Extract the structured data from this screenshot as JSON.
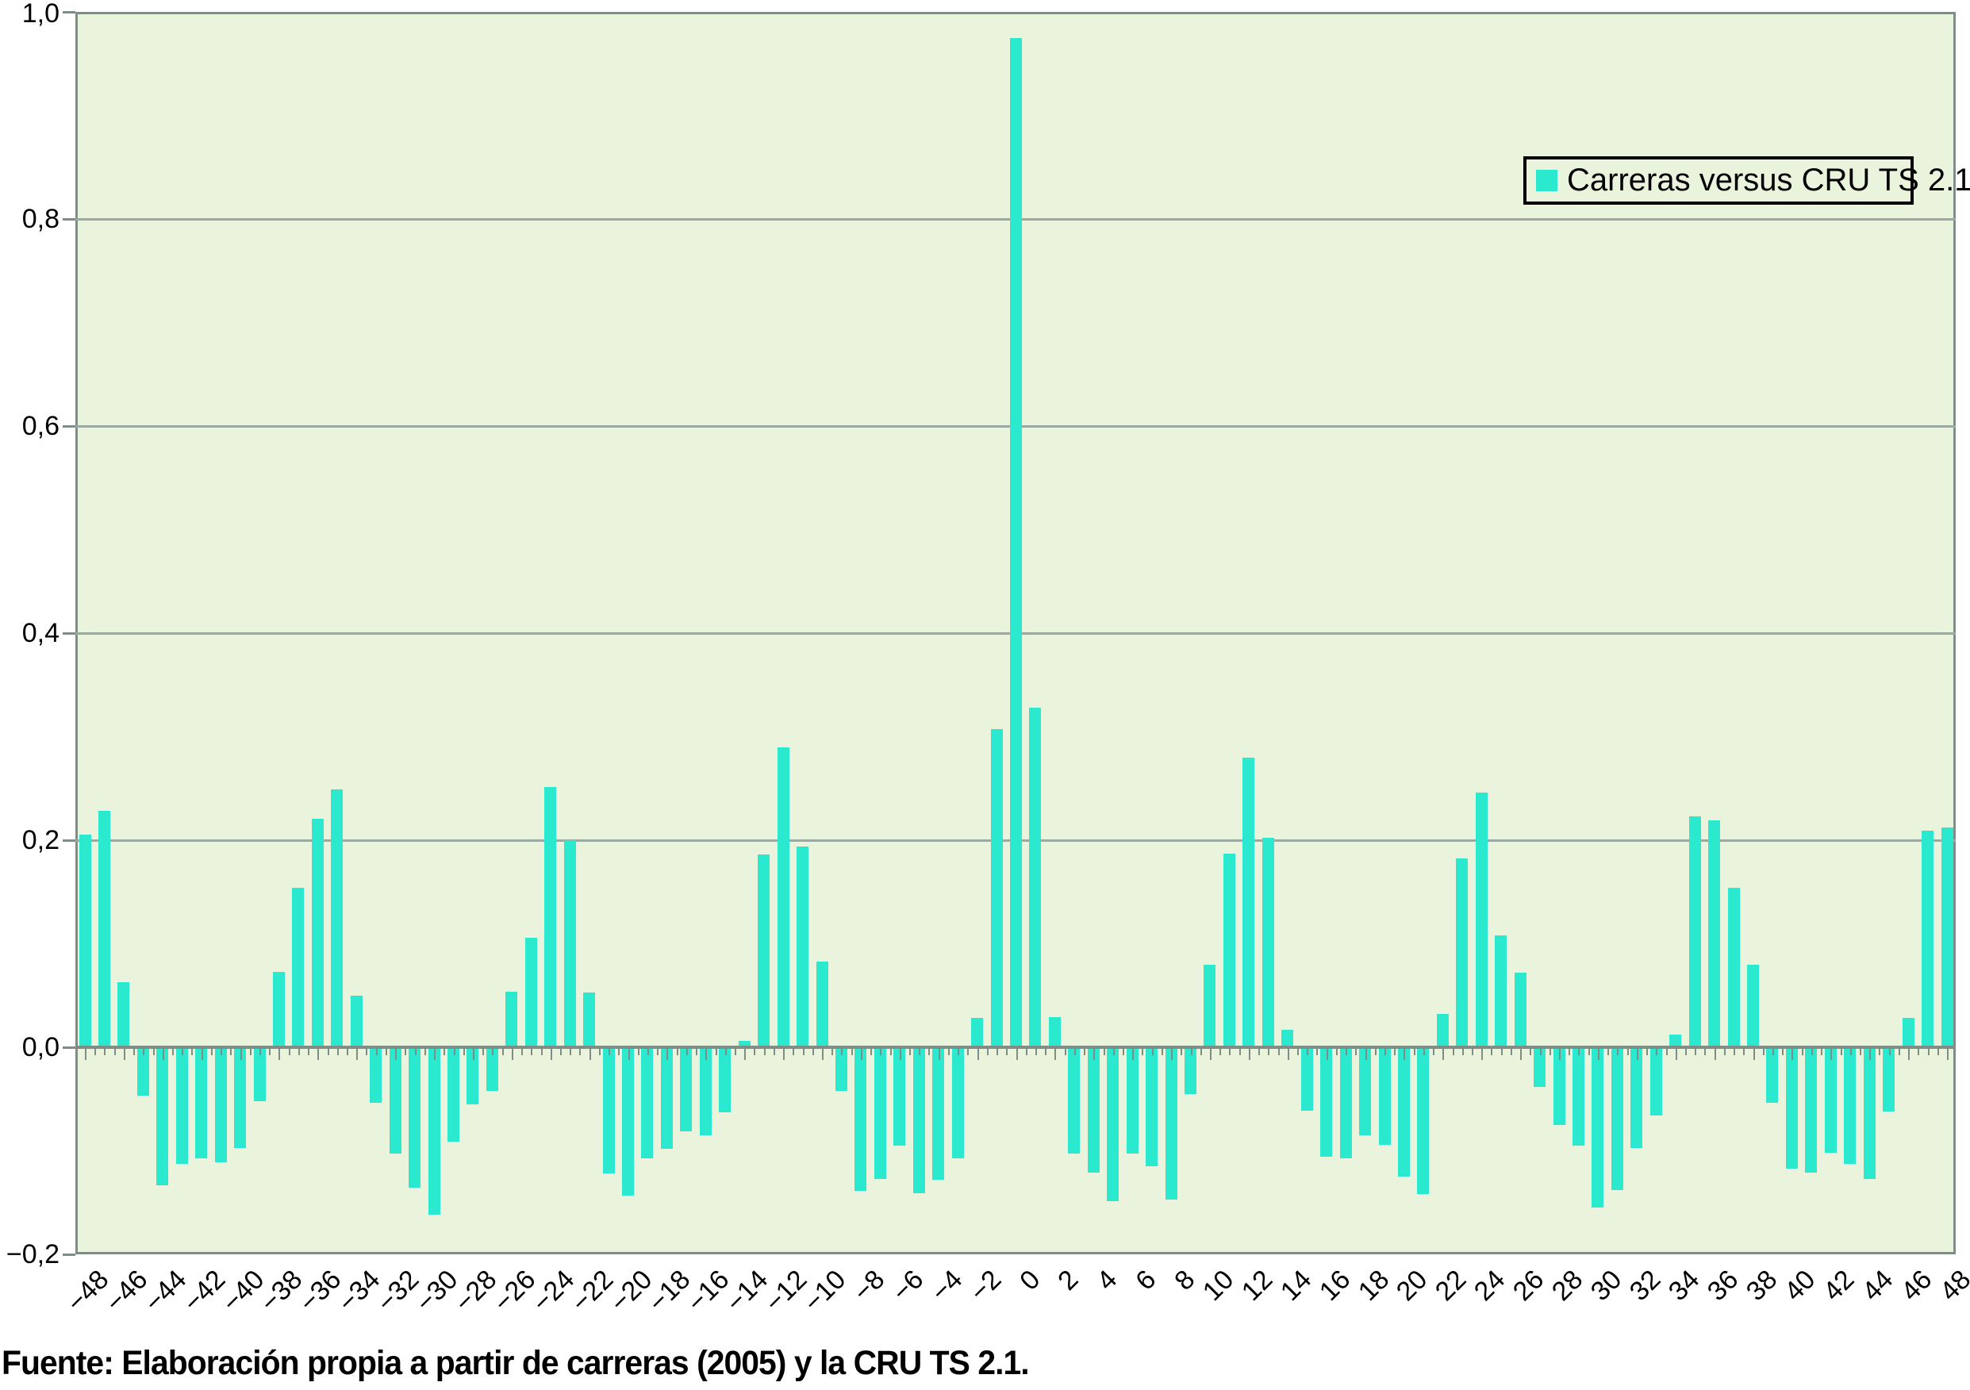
{
  "chart_data": {
    "type": "bar",
    "title": "",
    "xlabel": "",
    "ylabel": "",
    "legend_label": "Carreras versus CRU TS 2.1",
    "legend_position": "top-right",
    "grid": true,
    "ylim": [
      -0.2,
      1.0
    ],
    "ytick_values": [
      1.0,
      0.8,
      0.6,
      0.4,
      0.2,
      0.0,
      -0.2
    ],
    "ytick_labels": [
      "1,0",
      "0,8",
      "0,6",
      "0,4",
      "0,2",
      "0,0",
      "−0,2"
    ],
    "xtick_label_step": 2,
    "xtick_labels": [
      "−48",
      "−46",
      "−44",
      "−42",
      "−40",
      "−38",
      "−36",
      "−34",
      "−32",
      "−30",
      "−28",
      "−26",
      "−24",
      "−22",
      "−20",
      "−18",
      "−16",
      "−14",
      "−12",
      "−10",
      "−8",
      "−6",
      "−4",
      "−2",
      "0",
      "2",
      "4",
      "6",
      "8",
      "10",
      "12",
      "14",
      "16",
      "18",
      "20",
      "22",
      "24",
      "26",
      "28",
      "30",
      "32",
      "34",
      "36",
      "38",
      "40",
      "42",
      "44",
      "46",
      "48"
    ],
    "x": [
      -48,
      -47,
      -46,
      -45,
      -44,
      -43,
      -42,
      -41,
      -40,
      -39,
      -38,
      -37,
      -36,
      -35,
      -34,
      -33,
      -32,
      -31,
      -30,
      -29,
      -28,
      -27,
      -26,
      -25,
      -24,
      -23,
      -22,
      -21,
      -20,
      -19,
      -18,
      -17,
      -16,
      -15,
      -14,
      -13,
      -12,
      -11,
      -10,
      -9,
      -8,
      -7,
      -6,
      -5,
      -4,
      -3,
      -2,
      -1,
      0,
      1,
      2,
      3,
      4,
      5,
      6,
      7,
      8,
      9,
      10,
      11,
      12,
      13,
      14,
      15,
      16,
      17,
      18,
      19,
      20,
      21,
      22,
      23,
      24,
      25,
      26,
      27,
      28,
      29,
      30,
      31,
      32,
      33,
      34,
      35,
      36,
      37,
      38,
      39,
      40,
      41,
      42,
      43,
      44,
      45,
      46,
      47,
      48
    ],
    "values": [
      0.205,
      0.228,
      0.063,
      -0.047,
      -0.133,
      -0.113,
      -0.107,
      -0.111,
      -0.097,
      -0.052,
      0.073,
      0.154,
      0.221,
      0.249,
      0.05,
      -0.054,
      -0.103,
      -0.136,
      -0.162,
      -0.091,
      -0.055,
      -0.042,
      0.054,
      0.106,
      0.251,
      0.2,
      0.053,
      -0.122,
      -0.143,
      -0.107,
      -0.098,
      -0.081,
      -0.085,
      -0.063,
      0.006,
      0.186,
      0.29,
      0.194,
      0.083,
      -0.042,
      -0.139,
      -0.127,
      -0.095,
      -0.141,
      -0.128,
      -0.107,
      0.028,
      0.307,
      0.975,
      0.328,
      0.029,
      -0.103,
      -0.121,
      -0.149,
      -0.103,
      -0.115,
      -0.147,
      -0.045,
      0.08,
      0.187,
      0.28,
      0.202,
      0.017,
      -0.061,
      -0.106,
      -0.107,
      -0.085,
      -0.094,
      -0.125,
      -0.142,
      0.032,
      0.182,
      0.246,
      0.108,
      0.072,
      -0.038,
      -0.075,
      -0.095,
      -0.155,
      -0.138,
      -0.097,
      -0.066,
      0.012,
      0.223,
      0.219,
      0.154,
      0.08,
      -0.054,
      -0.117,
      -0.121,
      -0.102,
      -0.113,
      -0.127,
      -0.062,
      0.028,
      0.209,
      0.212
    ],
    "colors": {
      "bar": "#2be9ce",
      "plot_background": "#eaf4dc",
      "gridline": "#9aa9a1",
      "axis": "#7e8e87",
      "text": "#000000",
      "page_background": "#ffffff"
    }
  },
  "legend": {
    "label": "Carreras versus CRU TS 2.1"
  },
  "source_note": "Fuente: Elaboración propia a partir de carreras (2005) y la CRU TS 2.1."
}
